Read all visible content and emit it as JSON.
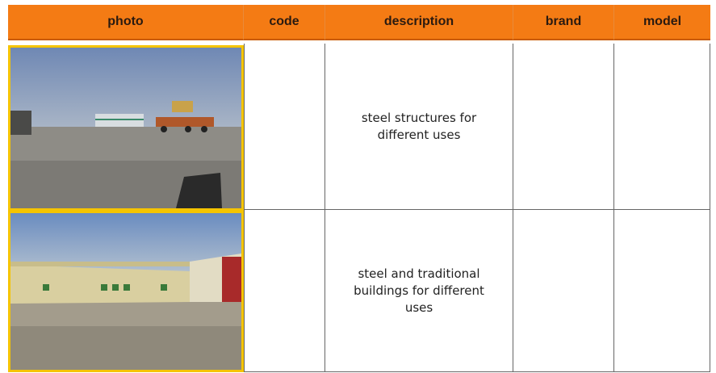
{
  "table": {
    "columns": [
      "photo",
      "code",
      "description",
      "brand",
      "model"
    ],
    "rows": [
      {
        "description": "steel structures for different uses"
      },
      {
        "description": "steel and traditional buildings for different uses"
      }
    ]
  }
}
